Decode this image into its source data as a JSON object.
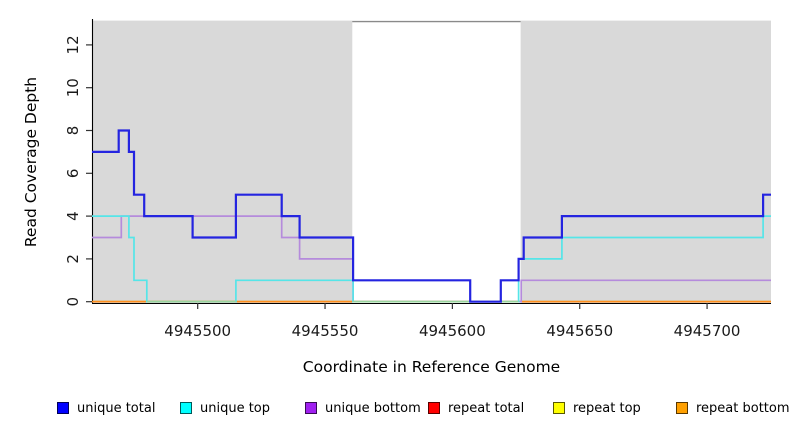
{
  "chart_data": {
    "type": "line",
    "subtype": "step-coverage-plot",
    "title": "",
    "xlabel": "Coordinate in Reference Genome",
    "ylabel": "Read Coverage Depth",
    "xlim": [
      4945458.5,
      4945725.1
    ],
    "ylim": [
      0,
      13.1
    ],
    "x_ticks": [
      4945500,
      4945550,
      4945600,
      4945650,
      4945700
    ],
    "y_ticks": [
      0,
      2,
      4,
      6,
      8,
      10,
      12
    ],
    "grid": "off",
    "frame_color": "#8a8a8a",
    "axis_color": "#000000",
    "background_bands": [
      {
        "from": 4945458.5,
        "to": 4945560.7,
        "color": "#d9d9d9"
      },
      {
        "from": 4945626.8,
        "to": 4945725.1,
        "color": "#d9d9d9"
      }
    ],
    "series": [
      {
        "name": "repeat total",
        "color": "#cc1111",
        "width": 1.7,
        "points": [
          [
            4945458.5,
            0
          ]
        ]
      },
      {
        "name": "repeat top",
        "color": "#f0f000",
        "width": 1.7,
        "points": [
          [
            4945458.5,
            0
          ]
        ]
      },
      {
        "name": "repeat bottom",
        "color": "#ff8f1f",
        "width": 1.7,
        "points": [
          [
            4945458.5,
            0
          ]
        ]
      },
      {
        "name": "unique bottom",
        "color": "#b58bdc",
        "width": 1.7,
        "points": [
          [
            4945458.5,
            3
          ],
          [
            4945470,
            4
          ],
          [
            4945533,
            3
          ],
          [
            4945540,
            2
          ],
          [
            4945561,
            0
          ],
          [
            4945627,
            1
          ]
        ]
      },
      {
        "name": "unique top",
        "color": "#55e5e8",
        "width": 1.7,
        "points": [
          [
            4945458.5,
            4
          ],
          [
            4945473,
            3
          ],
          [
            4945475,
            1
          ],
          [
            4945480,
            0
          ],
          [
            4945515,
            1
          ],
          [
            4945561,
            0
          ],
          [
            4945626,
            2
          ],
          [
            4945643,
            3
          ],
          [
            4945722,
            4
          ]
        ]
      },
      {
        "name": "unique total",
        "color": "#2424e0",
        "width": 2.2,
        "points": [
          [
            4945458.5,
            7
          ],
          [
            4945469,
            8
          ],
          [
            4945473,
            7
          ],
          [
            4945475,
            5
          ],
          [
            4945479,
            4
          ],
          [
            4945498,
            3
          ],
          [
            4945515,
            5
          ],
          [
            4945533,
            4
          ],
          [
            4945540,
            3
          ],
          [
            4945561,
            1
          ],
          [
            4945607,
            0
          ],
          [
            4945619,
            1
          ],
          [
            4945626,
            2
          ],
          [
            4945628,
            3
          ],
          [
            4945643,
            4
          ],
          [
            4945722,
            5
          ]
        ]
      }
    ],
    "overlap_segments": [
      {
        "from": 4945480,
        "to": 4945515,
        "value": 0,
        "color": "#99d49e"
      },
      {
        "from": 4945561,
        "to": 4945626,
        "value": 0,
        "color": "#99d49e"
      }
    ]
  },
  "legend": {
    "items": [
      {
        "label": "unique total",
        "color": "#0000ff"
      },
      {
        "label": "unique top",
        "color": "#00ffff"
      },
      {
        "label": "unique bottom",
        "color": "#a020f0"
      },
      {
        "label": "repeat total",
        "color": "#ff0000"
      },
      {
        "label": "repeat top",
        "color": "#ffff00"
      },
      {
        "label": "repeat bottom",
        "color": "#ffa000"
      }
    ]
  }
}
